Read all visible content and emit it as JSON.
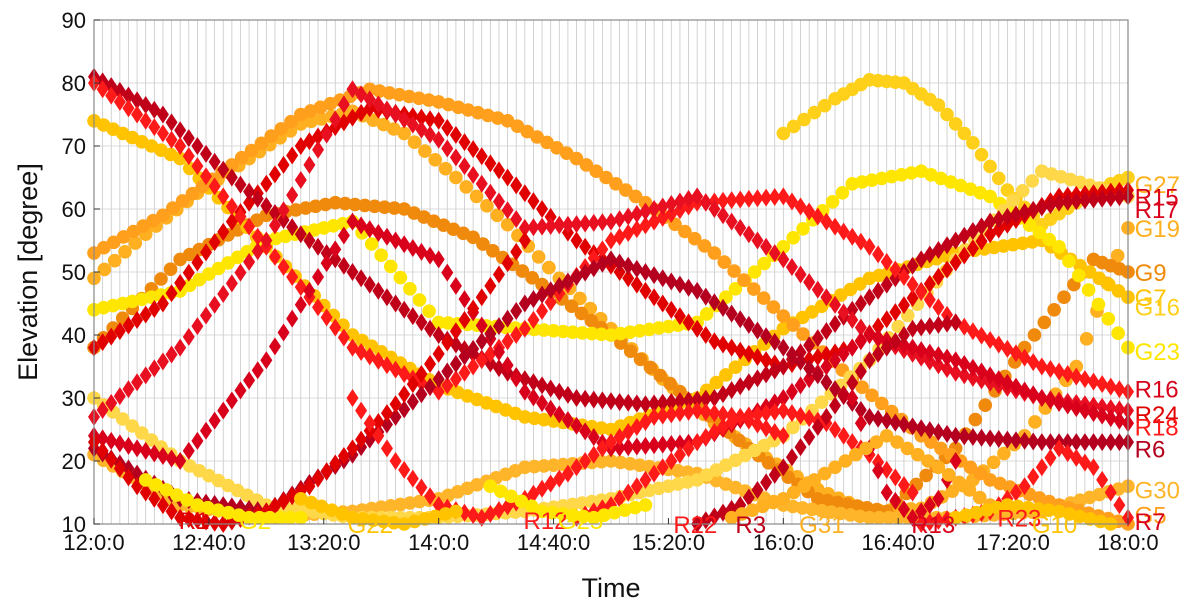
{
  "chart_data": {
    "type": "scatter",
    "title": "",
    "xlabel": "Time",
    "ylabel": "Elevation [degree]",
    "x_unit": "hours",
    "xlim": [
      12.0,
      18.0
    ],
    "ylim": [
      10,
      90
    ],
    "x_tick_labels": [
      "12:0:0",
      "12:40:0",
      "13:20:0",
      "14:0:0",
      "14:40:0",
      "15:20:0",
      "16:0:0",
      "16:40:0",
      "17:20:0",
      "18:0:0"
    ],
    "y_ticks": [
      10,
      20,
      30,
      40,
      50,
      60,
      70,
      80,
      90
    ],
    "grid": true,
    "colors": {
      "gps": [
        "#ffe600",
        "#ffc300",
        "#ff9f1c",
        "#f08a0c"
      ],
      "glonass": [
        "#ff1a1a",
        "#e00000",
        "#b4001e"
      ]
    },
    "series": [
      {
        "name": "G27",
        "system": "GPS",
        "color": "#ffd01a",
        "x": [
          16.0,
          16.3,
          16.5,
          16.7,
          16.9,
          17.1,
          17.3,
          17.5,
          17.7,
          17.9,
          18.0
        ],
        "y": [
          72,
          77.5,
          80.5,
          80,
          76.5,
          70.5,
          63,
          57.5,
          61,
          64,
          65
        ]
      },
      {
        "name": "G19",
        "system": "GPS",
        "color": "#ffb020",
        "x": [
          12.0,
          12.3,
          12.6,
          12.9,
          13.2,
          13.5,
          13.8,
          14.1,
          14.4,
          14.7,
          15.0,
          15.3,
          15.6,
          15.9,
          16.2,
          16.5,
          16.8,
          17.1,
          17.4,
          17.7,
          18.0
        ],
        "y": [
          49,
          56,
          62.5,
          68,
          73.5,
          75.5,
          72,
          65,
          57.5,
          49,
          41,
          33,
          26,
          20.5,
          15.5,
          12,
          12.5,
          17,
          24,
          35,
          57
        ]
      },
      {
        "name": "G9",
        "system": "GPS",
        "color": "#f08a0c",
        "x": [
          12.0,
          12.5,
          13.0,
          13.4,
          13.8,
          14.2,
          14.6,
          15.0,
          15.4,
          15.8,
          16.2,
          16.6,
          17.0,
          17.4,
          17.8,
          18.0
        ],
        "y": [
          38,
          52,
          59,
          61,
          60,
          55.5,
          48,
          40,
          31,
          22,
          14,
          12,
          22,
          38,
          52,
          50
        ]
      },
      {
        "name": "G16",
        "system": "GPS",
        "color": "#ffc300",
        "x": [
          12.0,
          12.5,
          13.0,
          13.5,
          14.0,
          14.5,
          15.0,
          15.5,
          16.0,
          16.5,
          17.0,
          17.5,
          18.0
        ],
        "y": [
          74,
          68,
          54,
          40,
          32,
          27,
          25,
          30,
          41,
          49,
          53,
          55,
          46
        ]
      },
      {
        "name": "G23",
        "system": "GPS",
        "color": "#ffe600",
        "x": [
          12.0,
          12.5,
          13.0,
          13.5,
          14.0,
          14.5,
          15.0,
          15.5,
          16.0,
          16.4,
          16.8,
          17.2,
          17.6,
          18.0
        ],
        "y": [
          44,
          47,
          55,
          58,
          42,
          41,
          40,
          42,
          54,
          64,
          66,
          62,
          54,
          38
        ]
      },
      {
        "name": "G30",
        "system": "GPS",
        "color": "#ffb52a",
        "x": [
          12.0,
          12.5,
          13.0,
          13.5,
          14.0,
          14.5,
          15.0,
          15.5,
          16.0,
          16.5,
          17.0,
          17.5,
          18.0
        ],
        "y": [
          21,
          13,
          11,
          12,
          14,
          19,
          20,
          18,
          13,
          11,
          11,
          12,
          16
        ]
      },
      {
        "name": "G5",
        "system": "GPS",
        "color": "#ff9f1c",
        "x": [
          12.0,
          12.4,
          12.8,
          13.2,
          13.6,
          14.0,
          14.4,
          14.8,
          15.2,
          15.6,
          16.0,
          16.4,
          16.8,
          17.2,
          17.6,
          18.0
        ],
        "y": [
          53,
          59,
          67,
          75,
          79,
          77,
          74,
          68,
          61,
          53,
          43,
          33,
          24,
          17,
          13,
          10
        ]
      },
      {
        "name": "G7",
        "system": "GPS",
        "color": "#ffd84a",
        "x": [
          12.0,
          12.5,
          13.0,
          13.5,
          14.0,
          14.5,
          15.0,
          15.5,
          16.0,
          16.5,
          17.0,
          17.5,
          18.0
        ],
        "y": [
          30,
          20,
          13,
          11,
          11,
          12,
          14,
          17,
          24,
          36,
          52,
          66,
          62
        ]
      },
      {
        "name": "R15",
        "system": "GLONASS",
        "color": "#e00000",
        "x": [
          12.0,
          12.4,
          12.8,
          13.2,
          13.6,
          14.0,
          14.4,
          14.8,
          15.2,
          15.6,
          16.0,
          16.4,
          16.8,
          17.2,
          17.6,
          18.0
        ],
        "y": [
          38,
          45,
          58,
          70,
          76,
          74,
          65,
          55,
          47,
          39,
          35,
          38,
          47,
          56,
          62,
          63
        ]
      },
      {
        "name": "R17",
        "system": "GLONASS",
        "color": "#c00018",
        "x": [
          12.0,
          12.4,
          12.8,
          13.2,
          13.6,
          14.0,
          14.4,
          14.8,
          15.2,
          15.6,
          16.0,
          16.4,
          16.8,
          17.2,
          17.6,
          18.0
        ],
        "y": [
          81,
          75,
          65,
          56,
          48,
          40,
          34,
          30,
          29,
          30,
          35,
          44,
          52,
          58,
          61,
          62
        ]
      },
      {
        "name": "R16",
        "system": "GLONASS",
        "color": "#ff1a1a",
        "x": [
          12.0,
          12.5,
          13.0,
          13.5,
          14.0,
          14.5,
          15.0,
          15.5,
          16.0,
          16.5,
          17.0,
          17.5,
          18.0
        ],
        "y": [
          80,
          70,
          54,
          38,
          31,
          41,
          55,
          61,
          62,
          54,
          42,
          35,
          31
        ]
      },
      {
        "name": "R24",
        "system": "GLONASS",
        "color": "#e81020",
        "x": [
          12.0,
          12.5,
          13.0,
          13.5,
          14.0,
          14.5,
          15.0,
          15.5,
          16.0,
          16.5,
          17.0,
          17.5,
          18.0
        ],
        "y": [
          27,
          38,
          55,
          79,
          71,
          57,
          58,
          62,
          52,
          40,
          34,
          30,
          28
        ]
      },
      {
        "name": "R18",
        "system": "GLONASS",
        "color": "#d8001a",
        "x": [
          12.0,
          12.5,
          13.0,
          13.5,
          14.0,
          14.5,
          15.0,
          15.5,
          16.0,
          16.5,
          17.0,
          17.5,
          18.0
        ],
        "y": [
          24,
          20,
          36,
          58,
          52,
          31,
          22,
          23,
          30,
          40,
          36,
          30,
          26
        ]
      },
      {
        "name": "R6",
        "system": "GLONASS",
        "color": "#b4001e",
        "x": [
          12.0,
          12.5,
          13.0,
          13.5,
          14.0,
          14.5,
          15.0,
          15.5,
          16.0,
          16.5,
          17.0,
          17.5,
          18.0
        ],
        "y": [
          22,
          14,
          12,
          21,
          33,
          45,
          52,
          47,
          38,
          27,
          24,
          23,
          23
        ]
      },
      {
        "name": "R1",
        "system": "GLONASS",
        "color": "#e00000",
        "x": [
          12.0,
          12.25,
          12.5,
          12.75,
          13.0,
          13.25,
          13.5,
          13.75,
          14.0,
          14.25,
          14.5
        ],
        "y": [
          23,
          16,
          11,
          10,
          12,
          16,
          22,
          29,
          37,
          46,
          55
        ]
      },
      {
        "name": "R12",
        "system": "GLONASS",
        "color": "#ff1a1a",
        "x": [
          13.5,
          13.75,
          14.0,
          14.25,
          14.5,
          14.75,
          15.0,
          15.25,
          15.5,
          15.75,
          16.0
        ],
        "y": [
          30,
          20,
          13,
          11,
          14,
          18,
          23,
          27,
          28,
          27,
          24
        ]
      },
      {
        "name": "R22",
        "system": "GLONASS",
        "color": "#ff1a1a",
        "x": [
          14.8,
          15.0,
          15.25,
          15.5,
          15.75,
          16.0,
          16.25,
          16.5,
          16.75
        ],
        "y": [
          11,
          13,
          18,
          23,
          27,
          28,
          26,
          21,
          15
        ]
      },
      {
        "name": "R3",
        "system": "GLONASS",
        "color": "#c00018",
        "x": [
          15.5,
          15.75,
          16.0,
          16.25,
          16.5,
          16.75,
          17.0
        ],
        "y": [
          10,
          13,
          19,
          27,
          36,
          41,
          42
        ]
      },
      {
        "name": "R13",
        "system": "GLONASS",
        "color": "#d8001a",
        "x": [
          16.4,
          16.5,
          16.6,
          16.75,
          16.9,
          17.0
        ],
        "y": [
          30,
          22,
          15,
          11,
          14,
          20
        ]
      },
      {
        "name": "R23",
        "system": "GLONASS",
        "color": "#ff1a1a",
        "x": [
          16.8,
          17.0,
          17.2,
          17.4,
          17.6,
          17.8,
          18.0
        ],
        "y": [
          10,
          11,
          12,
          16,
          22,
          19,
          11
        ]
      },
      {
        "name": "G2",
        "system": "GPS",
        "color": "#ffe600",
        "x": [
          12.3,
          12.6,
          12.9,
          13.2
        ],
        "y": [
          17,
          13,
          11,
          11
        ]
      },
      {
        "name": "G22",
        "system": "GPS",
        "color": "#ffc300",
        "x": [
          13.2,
          13.5,
          13.8,
          14.1
        ],
        "y": [
          14,
          11,
          10,
          12
        ]
      },
      {
        "name": "G25",
        "system": "GPS",
        "color": "#ffe600",
        "x": [
          14.3,
          14.6,
          14.9,
          15.2
        ],
        "y": [
          16,
          12,
          11,
          13
        ]
      },
      {
        "name": "G31",
        "system": "GPS",
        "color": "#ffb020",
        "x": [
          15.7,
          16.0,
          16.3,
          16.6,
          16.9,
          17.2
        ],
        "y": [
          11,
          14,
          19,
          24,
          19,
          13
        ]
      },
      {
        "name": "G10",
        "system": "GPS",
        "color": "#ffc300",
        "x": [
          17.0,
          17.3,
          17.6,
          17.9
        ],
        "y": [
          11,
          13,
          12,
          10
        ]
      }
    ],
    "end_labels": [
      {
        "text": "G27",
        "x": 18.05,
        "y": 64,
        "color": "#ffb020"
      },
      {
        "text": "R15",
        "x": 18.05,
        "y": 62,
        "color": "#d8001a"
      },
      {
        "text": "R17",
        "x": 18.05,
        "y": 60,
        "color": "#d8001a"
      },
      {
        "text": "G19",
        "x": 18.05,
        "y": 57,
        "color": "#ffb020"
      },
      {
        "text": "G9",
        "x": 18.05,
        "y": 50,
        "color": "#f08a0c"
      },
      {
        "text": "G7",
        "x": 18.05,
        "y": 46,
        "color": "#ffc300"
      },
      {
        "text": "G16",
        "x": 18.05,
        "y": 44.5,
        "color": "#ffd01a"
      },
      {
        "text": "G23",
        "x": 18.05,
        "y": 37.5,
        "color": "#ffe600"
      },
      {
        "text": "R16",
        "x": 18.05,
        "y": 31.5,
        "color": "#d8001a"
      },
      {
        "text": "R24",
        "x": 18.05,
        "y": 27.5,
        "color": "#e00000"
      },
      {
        "text": "R18",
        "x": 18.05,
        "y": 25.5,
        "color": "#ff1a1a"
      },
      {
        "text": "R6",
        "x": 18.05,
        "y": 22,
        "color": "#b4001e"
      },
      {
        "text": "G30",
        "x": 18.05,
        "y": 15.5,
        "color": "#ffb52a"
      },
      {
        "text": "G5",
        "x": 18.05,
        "y": 11.5,
        "color": "#ff9f1c"
      },
      {
        "text": "R7",
        "x": 18.05,
        "y": 10.5,
        "color": "#d8001a"
      }
    ],
    "inline_labels": [
      {
        "text": "R1",
        "x": 12.55,
        "y": 10.6,
        "color": "#e00000"
      },
      {
        "text": "G2",
        "x": 12.9,
        "y": 10.6,
        "color": "#ffe600"
      },
      {
        "text": "G22",
        "x": 13.53,
        "y": 10.0,
        "color": "#ffc300"
      },
      {
        "text": "R12",
        "x": 14.55,
        "y": 10.6,
        "color": "#ff1a1a"
      },
      {
        "text": "G25",
        "x": 14.75,
        "y": 10.6,
        "color": "#ffe600"
      },
      {
        "text": "R22",
        "x": 15.42,
        "y": 10.0,
        "color": "#ff1a1a"
      },
      {
        "text": "R3",
        "x": 15.78,
        "y": 10.0,
        "color": "#c00018"
      },
      {
        "text": "G31",
        "x": 16.15,
        "y": 10.0,
        "color": "#ffb020"
      },
      {
        "text": "R13",
        "x": 16.8,
        "y": 10.0,
        "color": "#d8001a"
      },
      {
        "text": "R23",
        "x": 17.3,
        "y": 11.0,
        "color": "#ff1a1a"
      },
      {
        "text": "G10",
        "x": 17.5,
        "y": 10.0,
        "color": "#ffc300"
      }
    ]
  }
}
